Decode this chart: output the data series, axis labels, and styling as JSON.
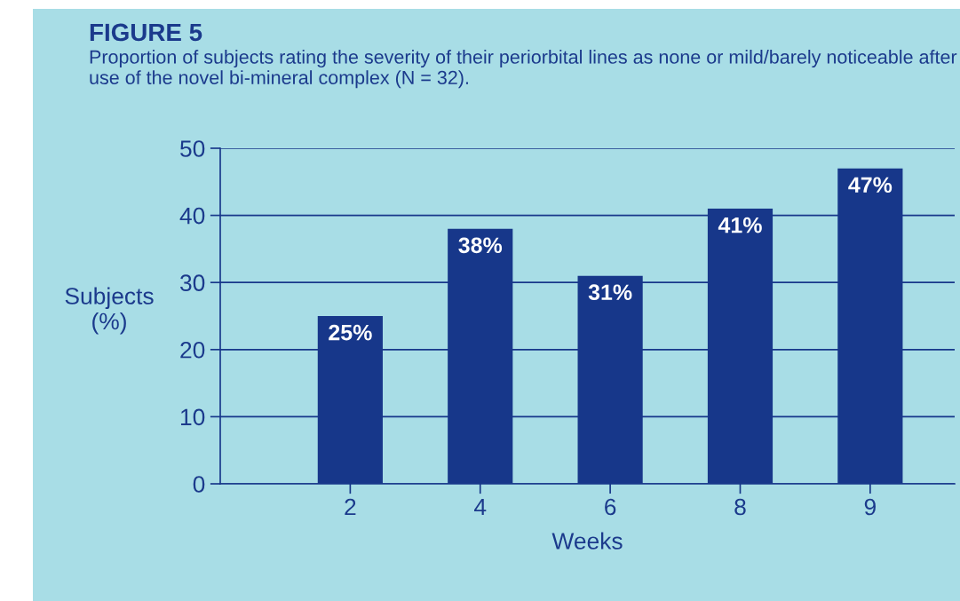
{
  "chart_data": {
    "type": "bar",
    "title": "FIGURE 5",
    "subtitle": "Proportion of subjects rating the severity of their periorbital lines as none or mild/barely noticeable after use of the novel bi-mineral complex (N = 32).",
    "xlabel": "Weeks",
    "ylabel": "Subjects\n(%)",
    "categories": [
      "2",
      "4",
      "6",
      "8",
      "9"
    ],
    "values": [
      25,
      38,
      31,
      41,
      47
    ],
    "value_labels": [
      "25%",
      "38%",
      "31%",
      "41%",
      "47%"
    ],
    "color": "#17378a",
    "ylim": [
      0,
      50
    ],
    "yticks": [
      0,
      10,
      20,
      30,
      40,
      50
    ],
    "grid": "y"
  }
}
